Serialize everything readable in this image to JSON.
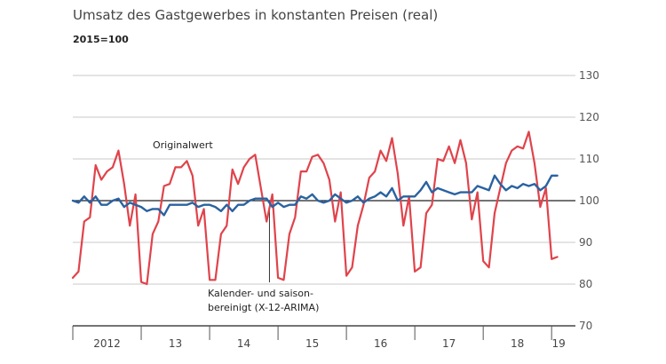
{
  "chart_data": {
    "type": "line",
    "title": "Umsatz des Gastgewerbes in konstanten Preisen (real)",
    "subtitle": "2015=100",
    "ylim": [
      70,
      130
    ],
    "yticks": [
      70,
      80,
      90,
      100,
      110,
      120,
      130
    ],
    "reference_line": 100,
    "x_start": "2012-01",
    "years": [
      "2012",
      "13",
      "14",
      "15",
      "16",
      "17",
      "18",
      "19"
    ],
    "series": [
      {
        "name": "Originalwert",
        "color": "#e0434b",
        "values": [
          81.5,
          83,
          95,
          96,
          108.5,
          105,
          107,
          108,
          112,
          104,
          94,
          101.5,
          80.5,
          80,
          92,
          95,
          103.5,
          104,
          108,
          108,
          109.5,
          106,
          94,
          98,
          81,
          81,
          92,
          94,
          107.5,
          104,
          108,
          110,
          111,
          103,
          95,
          101.5,
          81.5,
          81,
          92,
          96,
          107,
          107,
          110.5,
          111,
          109,
          105,
          95,
          102,
          82,
          84,
          94,
          99,
          105.5,
          107,
          112,
          109.5,
          115,
          106.5,
          94,
          101,
          83,
          84,
          97,
          99,
          110,
          109.5,
          113,
          109,
          114.5,
          109,
          95.5,
          102,
          85.5,
          84,
          97,
          103,
          109,
          112,
          113,
          112.5,
          116.5,
          109,
          98.5,
          103,
          86,
          86.5
        ]
      },
      {
        "name": "Kalender- und saisonbereinigt (X-12-ARIMA)",
        "color": "#2a62a0",
        "values": [
          100,
          99.5,
          101,
          99.5,
          101,
          99,
          99,
          100,
          100.5,
          98.5,
          99.5,
          99,
          98.5,
          97.5,
          98,
          98,
          96.5,
          99,
          99,
          99,
          99,
          99.5,
          98.5,
          99,
          99,
          98.5,
          97.5,
          99,
          97.5,
          99,
          99,
          100,
          100.5,
          100.5,
          100.5,
          98.5,
          99.5,
          98.5,
          99,
          99,
          101,
          100.5,
          101.5,
          100,
          99.5,
          100,
          101.5,
          100.5,
          99.5,
          100,
          101,
          99.5,
          100.5,
          101,
          102,
          101,
          103,
          100,
          101,
          101,
          101,
          102.5,
          104.5,
          102,
          103,
          102.5,
          102,
          101.5,
          102,
          102,
          102,
          103.5,
          103,
          102.5,
          106,
          104,
          102.5,
          103.5,
          103,
          104,
          103.5,
          104,
          102.5,
          103.5,
          106,
          106
        ]
      }
    ],
    "annotations": [
      {
        "text": "Originalwert"
      },
      {
        "lines": [
          "Kalender- und saison-",
          "bereinigt (X-12-ARIMA)"
        ]
      }
    ]
  }
}
